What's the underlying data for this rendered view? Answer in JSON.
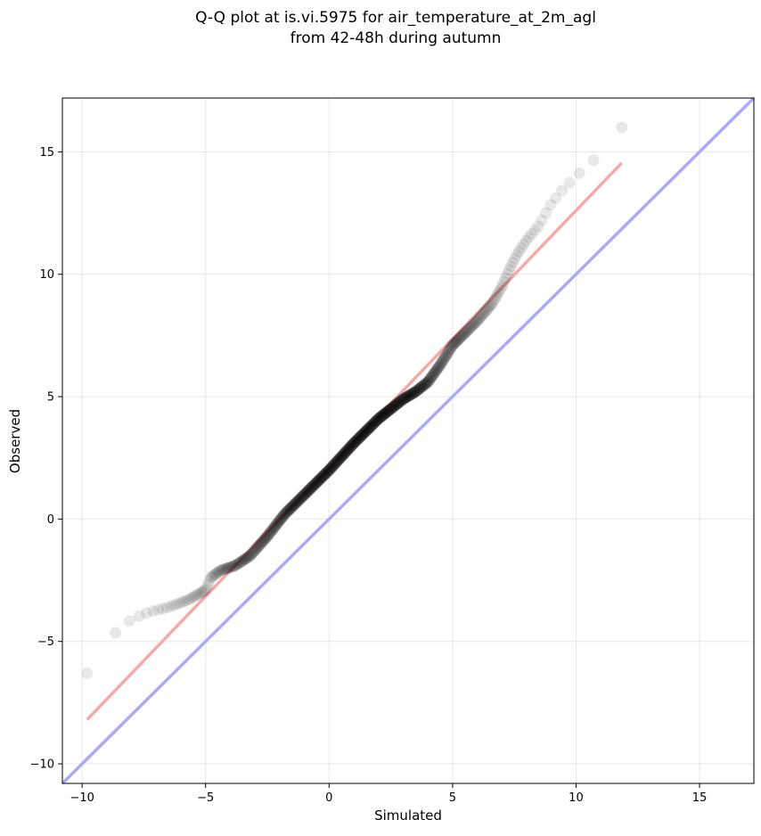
{
  "chart_data": {
    "type": "scatter",
    "title_line1": "Q-Q plot at is.vi.5975 for air_temperature_at_2m_agl",
    "title_line2": "from 42-48h during autumn",
    "xlabel": "Simulated",
    "ylabel": "Observed",
    "xlim": [
      -10.8,
      17.2
    ],
    "ylim": [
      -10.8,
      17.2
    ],
    "xticks": [
      -10,
      -5,
      0,
      5,
      10,
      15
    ],
    "yticks": [
      -10,
      -5,
      0,
      5,
      10,
      15
    ],
    "xtick_labels": [
      "−10",
      "−5",
      "0",
      "5",
      "10",
      "15"
    ],
    "ytick_labels": [
      "−10",
      "−5",
      "0",
      "5",
      "10",
      "15"
    ],
    "grid": true,
    "reference_line": {
      "x": [
        -10.8,
        17.2
      ],
      "y": [
        -10.8,
        17.2
      ],
      "color": "#aaaaf5"
    },
    "fit_line": {
      "x": [
        -9.8,
        11.85
      ],
      "y": [
        -8.2,
        14.55
      ],
      "color": "#f5aaaa"
    },
    "points_color": "#000000",
    "anchors": {
      "x": [
        -9.8,
        -9.5,
        -9.3,
        -9.0,
        -8.6,
        -8.0,
        -7.3,
        -6.5,
        -5.7,
        -5.0,
        -4.8,
        -4.4,
        -3.8,
        -3.2,
        -2.5,
        -1.8,
        -1.0,
        0.0,
        1.0,
        2.0,
        3.0,
        3.5,
        4.0,
        4.5,
        5.0,
        6.0,
        6.6,
        7.0,
        7.3,
        7.6,
        8.0,
        8.5,
        9.0,
        9.5,
        10.0,
        10.5,
        11.0,
        11.3,
        11.85
      ],
      "y": [
        -6.3,
        -6.0,
        -5.4,
        -5.0,
        -4.6,
        -4.1,
        -3.8,
        -3.6,
        -3.3,
        -2.9,
        -2.4,
        -2.1,
        -1.9,
        -1.5,
        -0.7,
        0.2,
        1.0,
        2.0,
        3.1,
        4.1,
        4.9,
        5.2,
        5.6,
        6.3,
        7.1,
        8.1,
        8.8,
        9.5,
        10.2,
        10.8,
        11.4,
        12.0,
        12.9,
        13.5,
        14.0,
        14.5,
        14.9,
        15.4,
        16.0
      ]
    },
    "n_points": 640
  }
}
